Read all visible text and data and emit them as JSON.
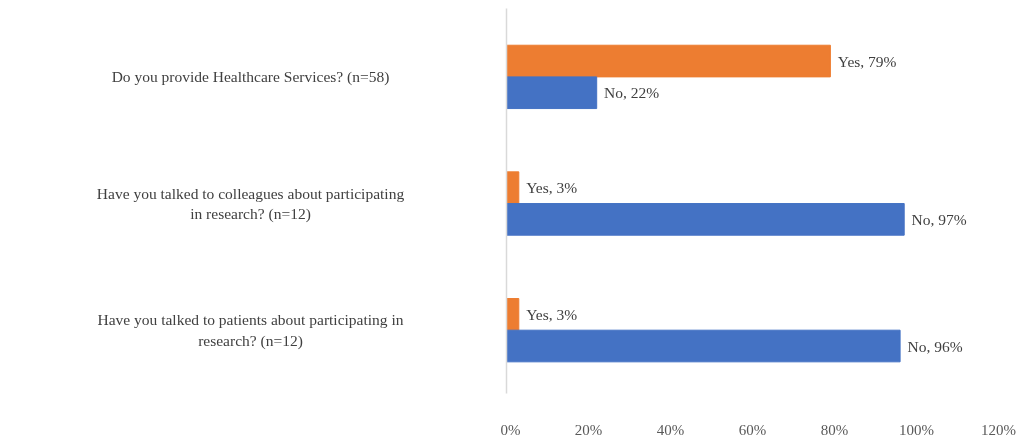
{
  "chart_data": {
    "type": "bar",
    "orientation": "horizontal",
    "categories": [
      "Do you provide Healthcare Services? (n=58)",
      "Have you talked to colleagues about participating in research? (n=12)",
      "Have you talked to patients about participating in research? (n=12)"
    ],
    "series": [
      {
        "color": "#ed7d31",
        "values": [
          79,
          3,
          3
        ],
        "value_labels": [
          "Yes, 79%",
          "Yes, 3%",
          "Yes, 3%"
        ]
      },
      {
        "color": "#4472c4",
        "values": [
          22,
          97,
          96
        ],
        "value_labels": [
          "No, 22%",
          "No, 97%",
          "No, 96%"
        ]
      }
    ],
    "xlim": [
      0,
      120
    ],
    "xticks": [
      {
        "value": 0,
        "label": "0%"
      },
      {
        "value": 20,
        "label": "20%"
      },
      {
        "value": 40,
        "label": "40%"
      },
      {
        "value": 60,
        "label": "60%"
      },
      {
        "value": 80,
        "label": "80%"
      },
      {
        "value": 100,
        "label": "100%"
      },
      {
        "value": 120,
        "label": "120%"
      }
    ],
    "grid": false
  }
}
